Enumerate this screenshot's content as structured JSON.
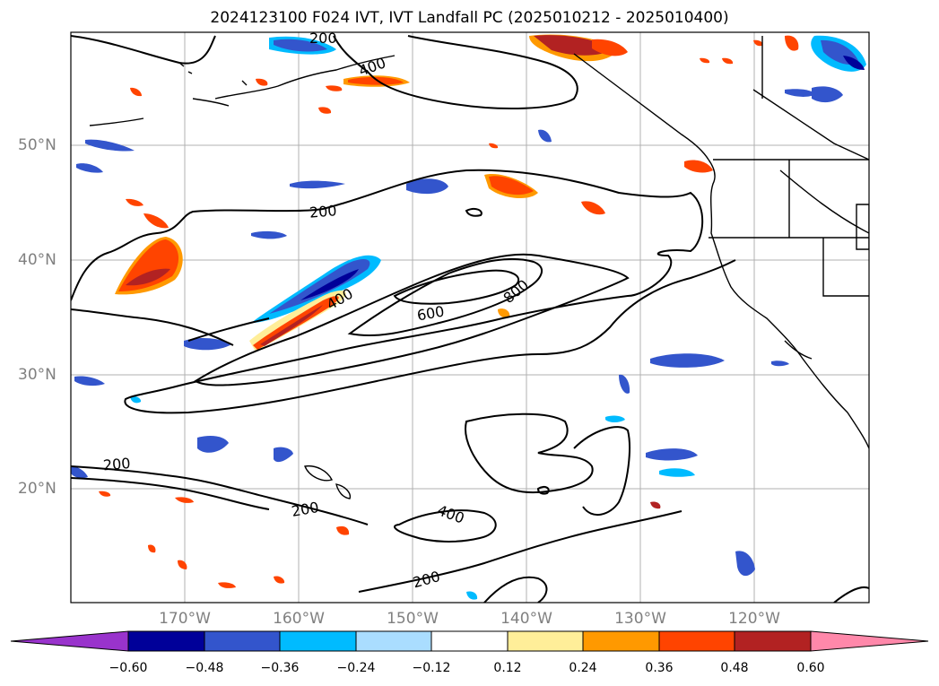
{
  "title": "2024123100 F024 IVT, IVT Landfall PC (2025010212 - 2025010400)",
  "lat_labels": [
    "50°N",
    "40°N",
    "30°N",
    "20°N"
  ],
  "lon_labels": [
    "170°W",
    "160°W",
    "150°W",
    "140°W",
    "130°W",
    "120°W"
  ],
  "contour_labels": {
    "c200_a": "200",
    "c400_a": "400",
    "c200_b": "200",
    "c400_b": "400",
    "c600": "600",
    "c800": "800",
    "c200_c": "200",
    "c200_d": "200",
    "c400_c": "400",
    "c200_e": "200"
  },
  "colorbar": {
    "ticks": [
      "−0.60",
      "−0.48",
      "−0.36",
      "−0.24",
      "−0.12",
      "0.12",
      "0.24",
      "0.36",
      "0.48",
      "0.60"
    ],
    "colors": [
      "#9933cc",
      "#000099",
      "#3355cc",
      "#00bbff",
      "#aaddff",
      "#ffffff",
      "#ffee99",
      "#ff9900",
      "#ff4400",
      "#b22222",
      "#ff88aa"
    ]
  },
  "colors": {
    "neg_fill_dark": "#000099",
    "neg_fill_mid": "#3355cc",
    "neg_fill_light": "#00bbff",
    "pos_fill_dark": "#b22222",
    "pos_fill_mid": "#ff4400",
    "pos_fill_light": "#ff9900",
    "pos_fill_edge": "#ffee99",
    "grid": "#b0b0b0"
  }
}
